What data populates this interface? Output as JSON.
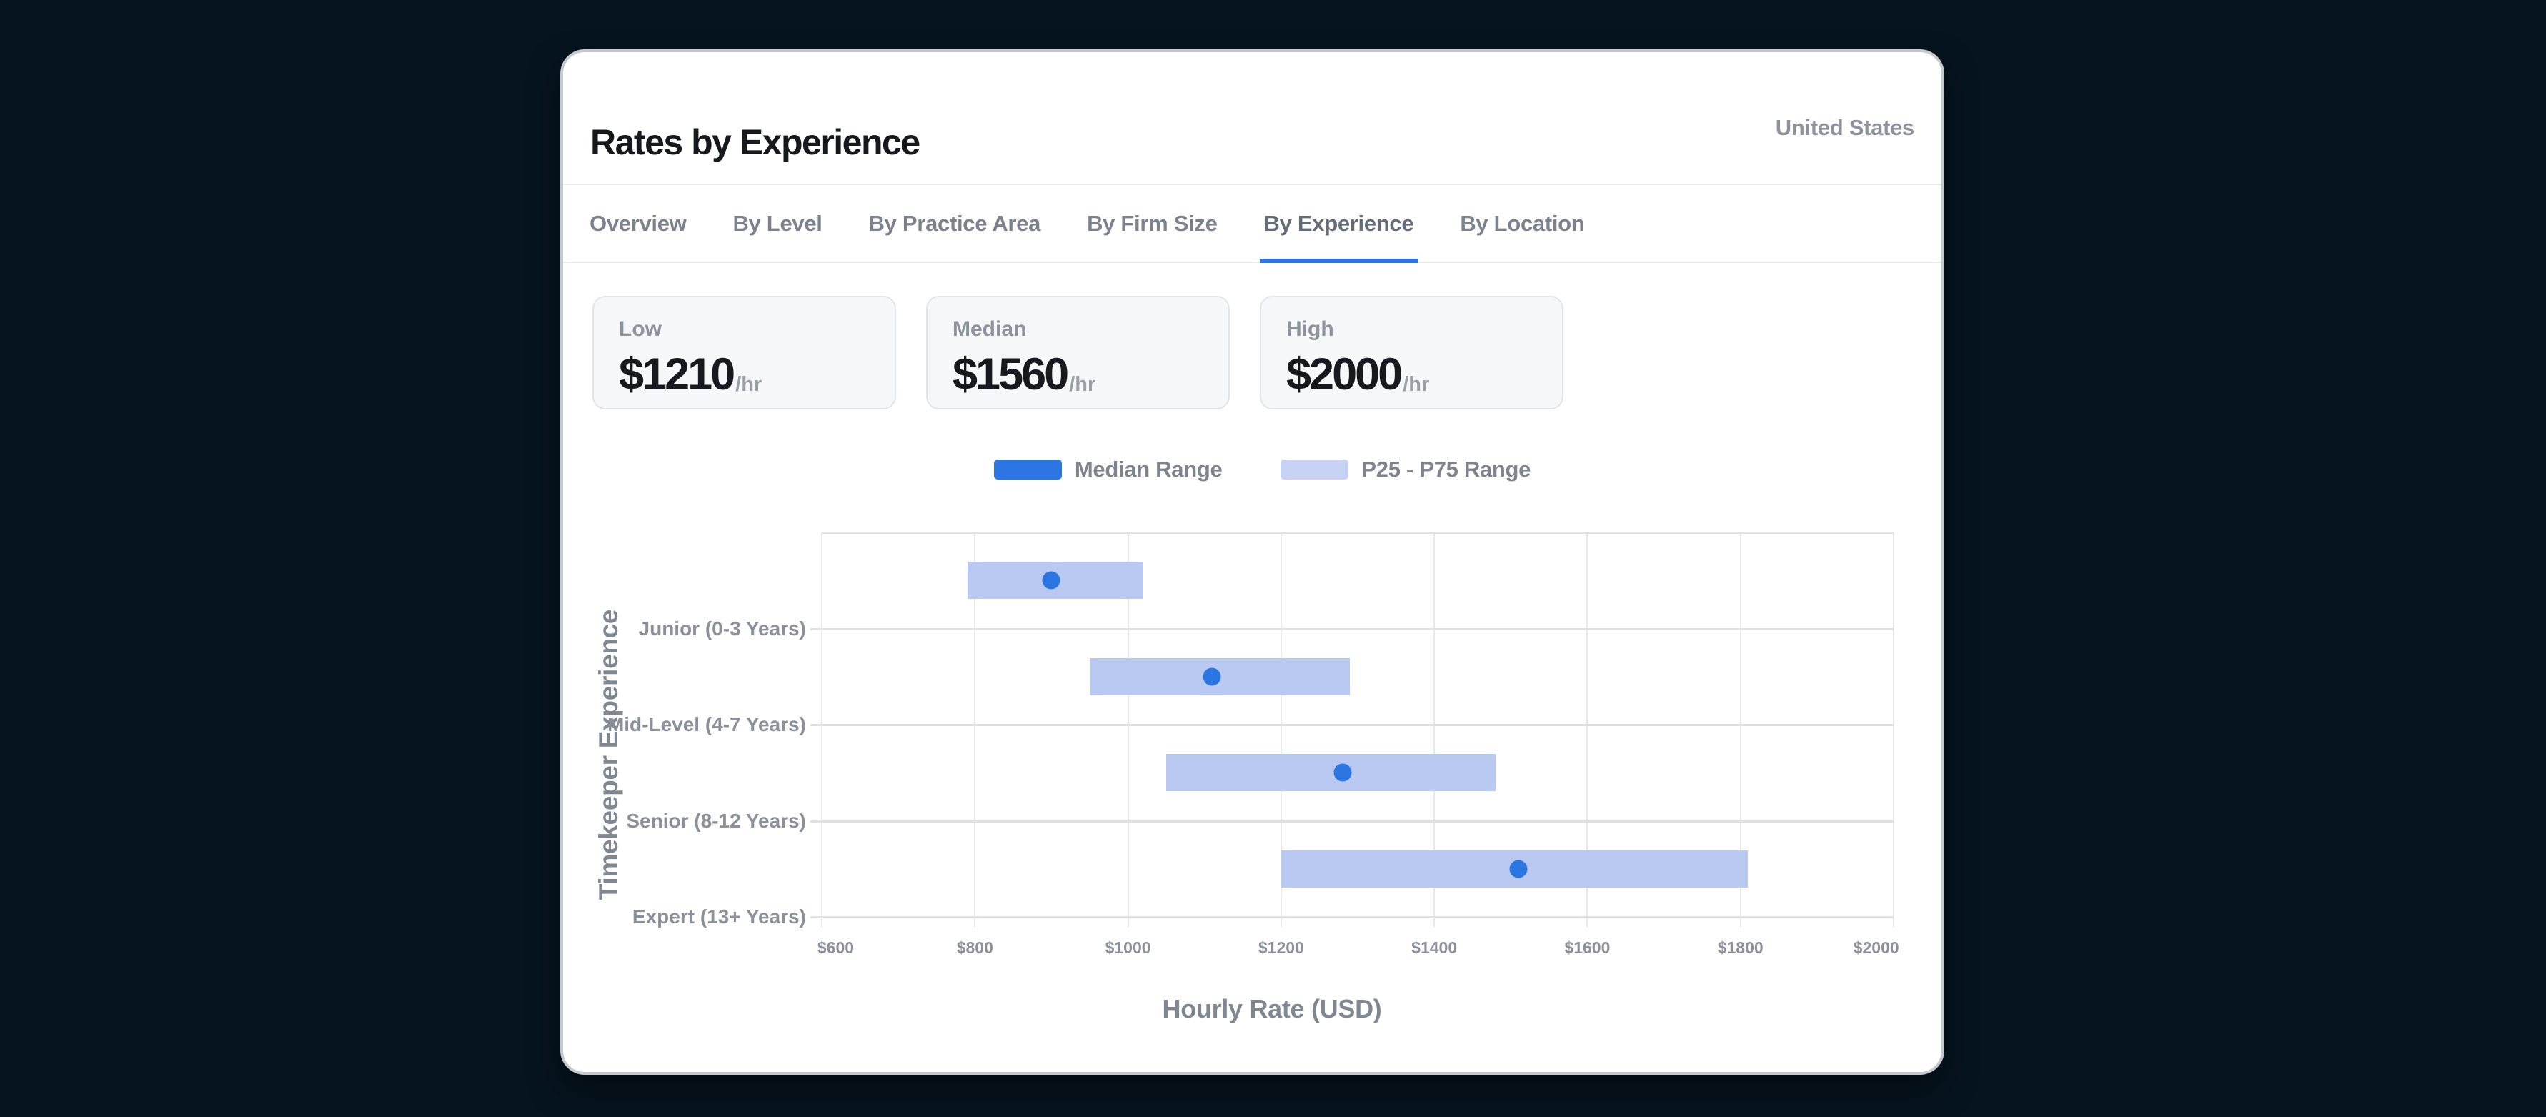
{
  "header": {
    "title": "Rates by Experience",
    "region": "United States"
  },
  "tabs": {
    "items": [
      "Overview",
      "By Level",
      "By Practice Area",
      "By Firm Size",
      "By Experience",
      "By Location"
    ],
    "active": "By Experience",
    "active_index": 4
  },
  "stats": [
    {
      "label": "Low",
      "value": "$1210",
      "unit": "/hr"
    },
    {
      "label": "Median",
      "value": "$1560",
      "unit": "/hr"
    },
    {
      "label": "High",
      "value": "$2000",
      "unit": "/hr"
    }
  ],
  "legend": [
    {
      "label": "Median Range",
      "color": "#2b76e3"
    },
    {
      "label": "P25 - P75 Range",
      "color": "#c7d2f4"
    }
  ],
  "chart_data": {
    "type": "bar",
    "variant": "horizontal-range-bars-with-median-dot",
    "title": "Rates by Experience",
    "categories": [
      "Junior (0-3 Years)",
      "Mid-Level (4-7 Years)",
      "Senior (8-12 Years)",
      "Expert (13+ Years)"
    ],
    "series": [
      {
        "name": "P25 - P75 Range",
        "p25": [
          790,
          950,
          1050,
          1200
        ],
        "p75": [
          1020,
          1290,
          1480,
          1810
        ],
        "color": "#b9c9f2"
      },
      {
        "name": "Median Range",
        "values": [
          900,
          1110,
          1280,
          1510
        ],
        "color": "#2b76e3"
      }
    ],
    "xlabel": "Hourly Rate (USD)",
    "ylabel": "Timekeeper Experience",
    "xlim": [
      600,
      2000
    ],
    "xticks": [
      600,
      800,
      1000,
      1200,
      1400,
      1600,
      1800,
      2000
    ],
    "xtick_prefix": "$",
    "grid": true,
    "legend_position": "top-center",
    "category_labels_at_band_boundaries": true
  },
  "colors": {
    "page_background": "#06141f",
    "card_background": "#ffffff",
    "accent_blue": "#2b76e3",
    "range_fill": "#b9c9f2",
    "tab_underline": "#2a76e8",
    "gridline": "#e7e8ea",
    "band_line": "#e0e1e4",
    "muted_text": "#8b919b"
  }
}
